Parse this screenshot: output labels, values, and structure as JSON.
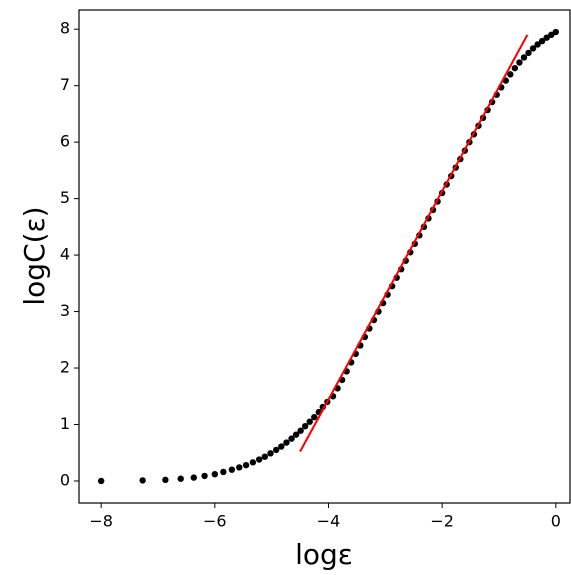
{
  "chart_data": {
    "type": "scatter",
    "xlabel": "logε",
    "ylabel": "logC(ε)",
    "xlim": [
      -8.39,
      0.25
    ],
    "ylim": [
      -0.39,
      8.34
    ],
    "xticks": [
      {
        "value": -8,
        "label": "−8"
      },
      {
        "value": -6,
        "label": "−6"
      },
      {
        "value": -4,
        "label": "−4"
      },
      {
        "value": -2,
        "label": "−2"
      },
      0
    ],
    "yticks": [
      0,
      1,
      2,
      3,
      4,
      5,
      6,
      7,
      8
    ],
    "grid": false,
    "series": [
      {
        "type": "scatter",
        "color": "#000000",
        "x": [
          -8,
          -7.27,
          -6.87,
          -6.6,
          -6.37,
          -6.18,
          -6.0,
          -5.85,
          -5.7,
          -5.57,
          -5.45,
          -5.33,
          -5.22,
          -5.12,
          -5.02,
          -4.92,
          -4.83,
          -4.74,
          -4.65,
          -4.57,
          -4.49,
          -4.41,
          -4.33,
          -4.25,
          -4.17,
          -4.1,
          -4.02,
          -3.92,
          -3.84,
          -3.76,
          -3.68,
          -3.6,
          -3.52,
          -3.44,
          -3.36,
          -3.28,
          -3.2,
          -3.12,
          -3.04,
          -2.96,
          -2.88,
          -2.8,
          -2.72,
          -2.64,
          -2.56,
          -2.48,
          -2.4,
          -2.32,
          -2.24,
          -2.16,
          -2.08,
          -2.0,
          -1.92,
          -1.84,
          -1.76,
          -1.68,
          -1.6,
          -1.52,
          -1.44,
          -1.36,
          -1.28,
          -1.2,
          -1.12,
          -1.04,
          -0.96,
          -0.88,
          -0.8,
          -0.72,
          -0.64,
          -0.56,
          -0.48,
          -0.4,
          -0.32,
          -0.24,
          -0.16,
          -0.08,
          0
        ],
        "values": [
          0,
          0.01,
          0.02,
          0.04,
          0.06,
          0.09,
          0.12,
          0.16,
          0.2,
          0.24,
          0.28,
          0.33,
          0.38,
          0.43,
          0.49,
          0.55,
          0.61,
          0.68,
          0.75,
          0.82,
          0.89,
          0.97,
          1.05,
          1.13,
          1.22,
          1.31,
          1.4,
          1.5,
          1.64,
          1.79,
          1.94,
          2.1,
          2.25,
          2.4,
          2.55,
          2.7,
          2.85,
          3.0,
          3.15,
          3.3,
          3.45,
          3.6,
          3.75,
          3.9,
          4.05,
          4.2,
          4.35,
          4.5,
          4.65,
          4.8,
          4.95,
          5.1,
          5.25,
          5.4,
          5.55,
          5.7,
          5.85,
          6.0,
          6.14,
          6.29,
          6.43,
          6.57,
          6.71,
          6.84,
          6.97,
          7.09,
          7.2,
          7.31,
          7.41,
          7.5,
          7.58,
          7.66,
          7.73,
          7.79,
          7.85,
          7.9,
          7.95
        ]
      },
      {
        "type": "line",
        "color": "#ff0000",
        "x": [
          -4.5,
          -0.5
        ],
        "values": [
          0.52,
          7.9
        ]
      }
    ]
  }
}
